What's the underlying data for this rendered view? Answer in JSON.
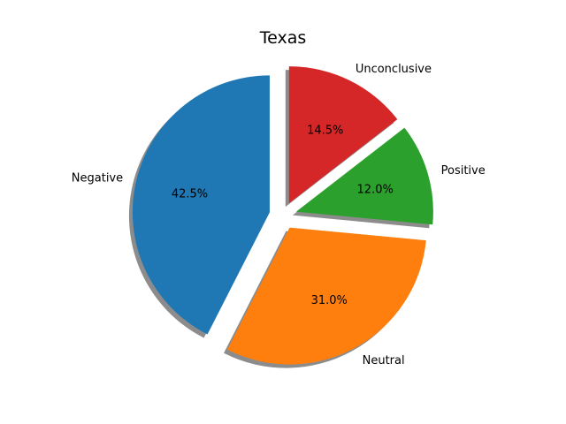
{
  "chart_data": {
    "type": "pie",
    "title": "Texas",
    "categories": [
      "Negative",
      "Neutral",
      "Positive",
      "Unconclusive"
    ],
    "values": [
      42.5,
      31.0,
      12.0,
      14.5
    ],
    "value_labels": [
      "42.5%",
      "31.0%",
      "12.0%",
      "14.5%"
    ],
    "colors": [
      "#1f77b4",
      "#ff7f0e",
      "#2ca02c",
      "#d62728"
    ],
    "explode": [
      0.1,
      0.1,
      0.1,
      0.1
    ],
    "start_angle": 90,
    "counterclock": true,
    "shadow": true,
    "legend": "none",
    "grid": false
  }
}
